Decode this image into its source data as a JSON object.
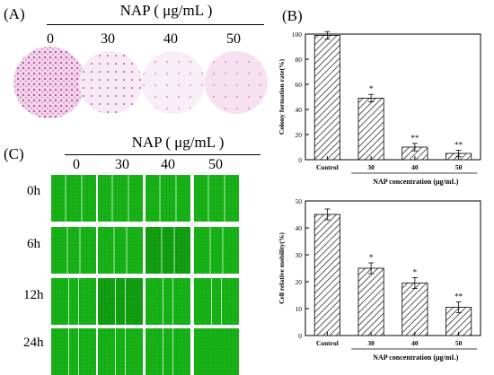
{
  "panel_labels": {
    "a": "(A)",
    "b": "(B)",
    "c": "(C)"
  },
  "panel_a": {
    "header": "NAP ( μg/mL )",
    "doses": [
      "0",
      "30",
      "40",
      "50"
    ]
  },
  "panel_c": {
    "header": "NAP ( μg/mL )",
    "doses": [
      "0",
      "30",
      "40",
      "50"
    ],
    "times": [
      "0h",
      "6h",
      "12h",
      "24h"
    ]
  },
  "chart_data": [
    {
      "type": "bar",
      "categories": [
        "Control",
        "30",
        "40",
        "50"
      ],
      "values": [
        99,
        49,
        10,
        5
      ],
      "errors": [
        3,
        3,
        3,
        2.5
      ],
      "annotations": [
        "",
        "*",
        "**",
        "**"
      ],
      "ylabel": "Colony formation rate(%)",
      "xlabel": "NAP concentration (μg/mL)",
      "ylim": [
        0,
        100
      ],
      "yticks": [
        0,
        20,
        40,
        60,
        80,
        100
      ]
    },
    {
      "type": "bar",
      "categories": [
        "Control",
        "30",
        "40",
        "50"
      ],
      "values": [
        45,
        25,
        19.5,
        10.5
      ],
      "errors": [
        2,
        2,
        2,
        2
      ],
      "annotations": [
        "",
        "*",
        "*",
        "**"
      ],
      "ylabel": "Cell relative mobility(%)",
      "xlabel": "NAP concentration (μg/mL)",
      "ylim": [
        0,
        50
      ],
      "yticks": [
        0,
        10,
        20,
        30,
        40,
        50
      ]
    }
  ]
}
